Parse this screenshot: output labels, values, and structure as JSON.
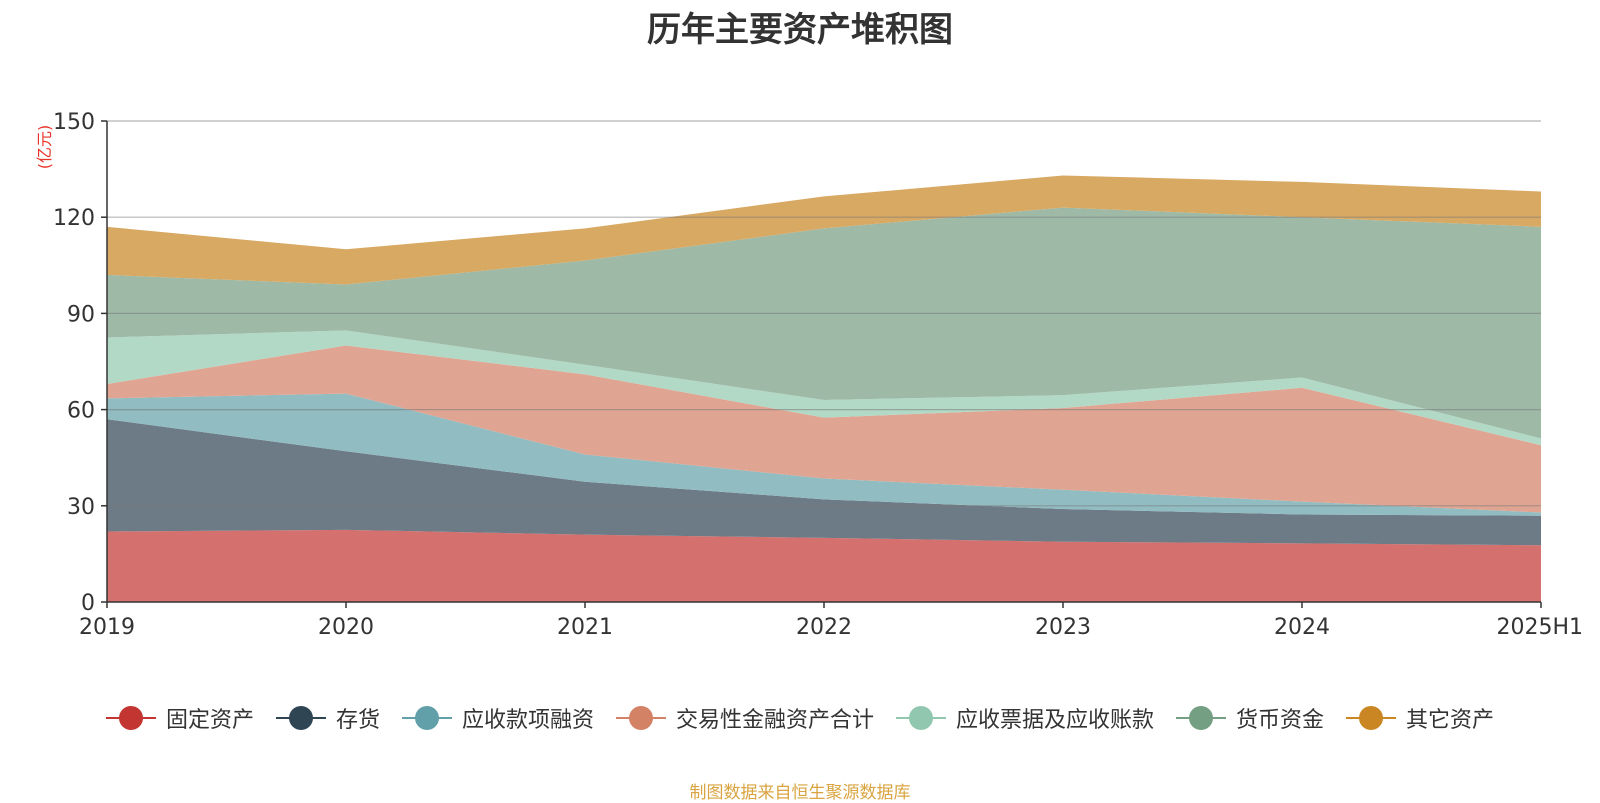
{
  "chart_data": {
    "type": "area",
    "stacked": true,
    "title": "历年主要资产堆积图",
    "unit_label": "(亿元)",
    "categories": [
      "2019",
      "2020",
      "2021",
      "2022",
      "2023",
      "2024",
      "2025H1"
    ],
    "ylim": [
      0,
      150
    ],
    "yticks": [
      0,
      30,
      60,
      90,
      120,
      150
    ],
    "grid": true,
    "legend_position": "bottom",
    "series": [
      {
        "name": "固定资产",
        "color": "#c23531",
        "fill": "#d4706d",
        "values": [
          22.0,
          22.5,
          21.0,
          20.0,
          18.8,
          18.3,
          17.7
        ]
      },
      {
        "name": "存货",
        "color": "#2f4554",
        "fill": "#6d7b86",
        "values": [
          35.0,
          24.5,
          16.5,
          12.0,
          10.2,
          9.0,
          9.2
        ]
      },
      {
        "name": "应收款项融资",
        "color": "#61a0a8",
        "fill": "#90bcc2",
        "values": [
          6.5,
          18.0,
          8.5,
          6.5,
          6.0,
          4.0,
          1.0
        ]
      },
      {
        "name": "交易性金融资产合计",
        "color": "#d48265",
        "fill": "#e0a592",
        "values": [
          4.5,
          15.0,
          25.0,
          19.0,
          25.5,
          35.5,
          21.0
        ]
      },
      {
        "name": "应收票据及应收账款",
        "color": "#91c7ae",
        "fill": "#b2d9c6",
        "values": [
          14.5,
          4.7,
          3.0,
          5.5,
          4.0,
          3.2,
          2.1
        ]
      },
      {
        "name": "货币资金",
        "color": "#749f83",
        "fill": "#9eb9a6",
        "values": [
          19.5,
          14.3,
          32.5,
          53.5,
          58.5,
          50.0,
          66.0
        ]
      },
      {
        "name": "其它资产",
        "color": "#ca8622",
        "fill": "#d8a962",
        "values": [
          15.0,
          11.0,
          10.0,
          10.0,
          10.0,
          11.0,
          11.0
        ]
      }
    ]
  },
  "source_note": "制图数据来自恒生聚源数据库"
}
